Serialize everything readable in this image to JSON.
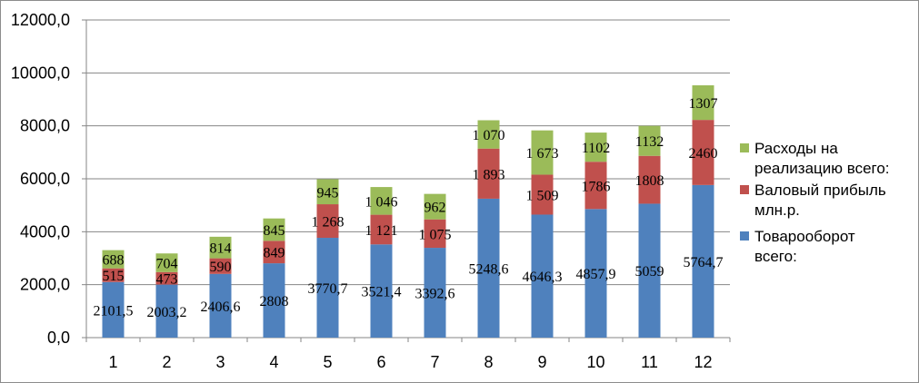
{
  "chart_data": {
    "type": "bar",
    "stacked": true,
    "categories": [
      "1",
      "2",
      "3",
      "4",
      "5",
      "6",
      "7",
      "8",
      "9",
      "10",
      "11",
      "12"
    ],
    "ylim": [
      0,
      12000
    ],
    "yticks": [
      {
        "value": 0,
        "label": "0,0"
      },
      {
        "value": 2000,
        "label": "2000,0"
      },
      {
        "value": 4000,
        "label": "4000,0"
      },
      {
        "value": 6000,
        "label": "6000,0"
      },
      {
        "value": 8000,
        "label": "8000,0"
      },
      {
        "value": 10000,
        "label": "10000,0"
      },
      {
        "value": 12000,
        "label": "12000,0"
      }
    ],
    "grid": true,
    "legend_position": "right",
    "series": [
      {
        "name": "Товарооборот всего:",
        "color": "#4f81bd",
        "values": [
          2101.5,
          2003.2,
          2406.6,
          2808,
          3770.7,
          3521.4,
          3392.6,
          5248.6,
          4646.3,
          4857.9,
          5059,
          5764.7
        ],
        "labels": [
          "2101,5",
          "2003,2",
          "2406,6",
          "2808",
          "3770,7",
          "3521,4",
          "3392,6",
          "5248,6",
          "4646,3",
          "4857,9",
          "5059",
          "5764,7"
        ]
      },
      {
        "name": "Валовый прибыль млн.р.",
        "color": "#c0504d",
        "values": [
          515,
          473,
          590,
          849,
          1268,
          1121,
          1075,
          1893,
          1509,
          1786,
          1808,
          2460
        ],
        "labels": [
          "515",
          "473",
          "590",
          "849",
          "1 268",
          "1 121",
          "1 075",
          "1 893",
          "1 509",
          "1786",
          "1808",
          "2460"
        ]
      },
      {
        "name": "Расходы на реализацию всего:",
        "color": "#9bbb59",
        "values": [
          688,
          704,
          814,
          845,
          945,
          1046,
          962,
          1070,
          1673,
          1102,
          1132,
          1307
        ],
        "labels": [
          "688",
          "704",
          "814",
          "845",
          "945",
          "1 046",
          "962",
          "1 070",
          "1 673",
          "1102",
          "1132",
          "1307"
        ]
      }
    ],
    "legend": [
      {
        "series": 2,
        "lines": [
          "Расходы на",
          "реализацию всего:"
        ]
      },
      {
        "series": 1,
        "lines": [
          "Валовый прибыль",
          "млн.р."
        ]
      },
      {
        "series": 0,
        "lines": [
          "Товарооборот",
          "всего:"
        ]
      }
    ]
  }
}
